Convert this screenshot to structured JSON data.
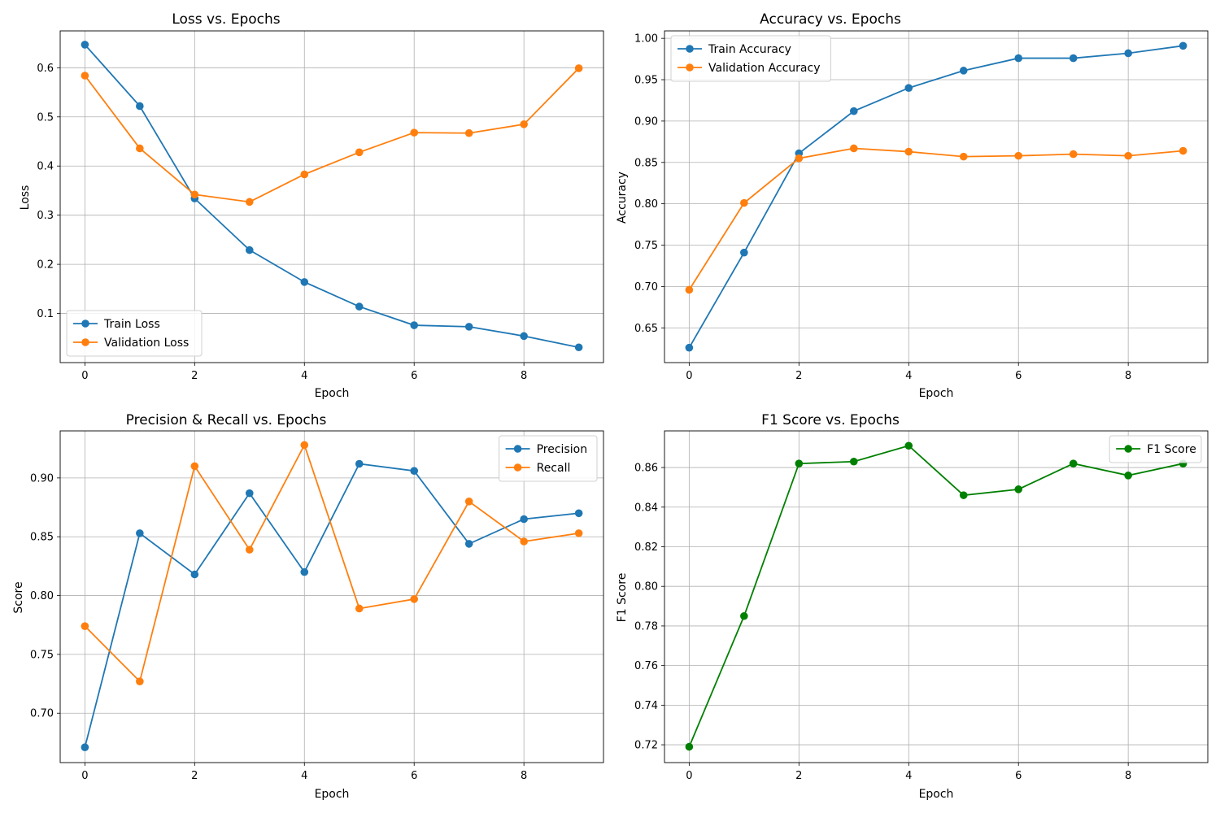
{
  "chart_data": [
    {
      "type": "line",
      "title": "Loss vs. Epochs",
      "xlabel": "Epoch",
      "ylabel": "Loss",
      "x": [
        0,
        1,
        2,
        3,
        4,
        5,
        6,
        7,
        8,
        9
      ],
      "xlim": [
        -0.45,
        9.45
      ],
      "ylim": [
        0.0,
        0.675
      ],
      "xticks": [
        0,
        2,
        4,
        6,
        8
      ],
      "yticks": [
        0.1,
        0.2,
        0.3,
        0.4,
        0.5,
        0.6
      ],
      "ytick_labels": [
        "0.1",
        "0.2",
        "0.3",
        "0.4",
        "0.5",
        "0.6"
      ],
      "grid": true,
      "legend_loc": "lower-left",
      "series": [
        {
          "name": "Train Loss",
          "color": "#1f77b4",
          "values": [
            0.647,
            0.522,
            0.334,
            0.229,
            0.164,
            0.114,
            0.076,
            0.073,
            0.054,
            0.031
          ]
        },
        {
          "name": "Validation Loss",
          "color": "#ff7f0e",
          "values": [
            0.584,
            0.436,
            0.342,
            0.327,
            0.383,
            0.428,
            0.468,
            0.467,
            0.485,
            0.599
          ]
        }
      ]
    },
    {
      "type": "line",
      "title": "Accuracy vs. Epochs",
      "xlabel": "Epoch",
      "ylabel": "Accuracy",
      "x": [
        0,
        1,
        2,
        3,
        4,
        5,
        6,
        7,
        8,
        9
      ],
      "xlim": [
        -0.45,
        9.45
      ],
      "ylim": [
        0.608,
        1.009
      ],
      "xticks": [
        0,
        2,
        4,
        6,
        8
      ],
      "yticks": [
        0.65,
        0.7,
        0.75,
        0.8,
        0.85,
        0.9,
        0.95,
        1.0
      ],
      "ytick_labels": [
        "0.65",
        "0.70",
        "0.75",
        "0.80",
        "0.85",
        "0.90",
        "0.95",
        "1.00"
      ],
      "grid": true,
      "legend_loc": "upper-left",
      "series": [
        {
          "name": "Train Accuracy",
          "color": "#1f77b4",
          "values": [
            0.626,
            0.741,
            0.861,
            0.912,
            0.94,
            0.961,
            0.976,
            0.976,
            0.982,
            0.991
          ]
        },
        {
          "name": "Validation Accuracy",
          "color": "#ff7f0e",
          "values": [
            0.696,
            0.801,
            0.855,
            0.867,
            0.863,
            0.857,
            0.858,
            0.86,
            0.858,
            0.864
          ]
        }
      ]
    },
    {
      "type": "line",
      "title": "Precision & Recall vs. Epochs",
      "xlabel": "Epoch",
      "ylabel": "Score",
      "x": [
        0,
        1,
        2,
        3,
        4,
        5,
        6,
        7,
        8,
        9
      ],
      "xlim": [
        -0.45,
        9.45
      ],
      "ylim": [
        0.658,
        0.94
      ],
      "xticks": [
        0,
        2,
        4,
        6,
        8
      ],
      "yticks": [
        0.7,
        0.75,
        0.8,
        0.85,
        0.9
      ],
      "ytick_labels": [
        "0.70",
        "0.75",
        "0.80",
        "0.85",
        "0.90"
      ],
      "grid": true,
      "legend_loc": "upper-right",
      "series": [
        {
          "name": "Precision",
          "color": "#1f77b4",
          "values": [
            0.671,
            0.853,
            0.818,
            0.887,
            0.82,
            0.912,
            0.906,
            0.844,
            0.865,
            0.87
          ]
        },
        {
          "name": "Recall",
          "color": "#ff7f0e",
          "values": [
            0.774,
            0.727,
            0.91,
            0.839,
            0.928,
            0.789,
            0.797,
            0.88,
            0.846,
            0.853
          ]
        }
      ]
    },
    {
      "type": "line",
      "title": "F1 Score vs. Epochs",
      "xlabel": "Epoch",
      "ylabel": "F1 Score",
      "x": [
        0,
        1,
        2,
        3,
        4,
        5,
        6,
        7,
        8,
        9
      ],
      "xlim": [
        -0.45,
        9.45
      ],
      "ylim": [
        0.711,
        0.8785
      ],
      "xticks": [
        0,
        2,
        4,
        6,
        8
      ],
      "yticks": [
        0.72,
        0.74,
        0.76,
        0.78,
        0.8,
        0.82,
        0.84,
        0.86
      ],
      "ytick_labels": [
        "0.72",
        "0.74",
        "0.76",
        "0.78",
        "0.80",
        "0.82",
        "0.84",
        "0.86"
      ],
      "grid": true,
      "legend_loc": "upper-right",
      "series": [
        {
          "name": "F1 Score",
          "color": "#008000",
          "values": [
            0.719,
            0.785,
            0.862,
            0.863,
            0.871,
            0.846,
            0.849,
            0.862,
            0.856,
            0.862
          ]
        }
      ]
    }
  ]
}
